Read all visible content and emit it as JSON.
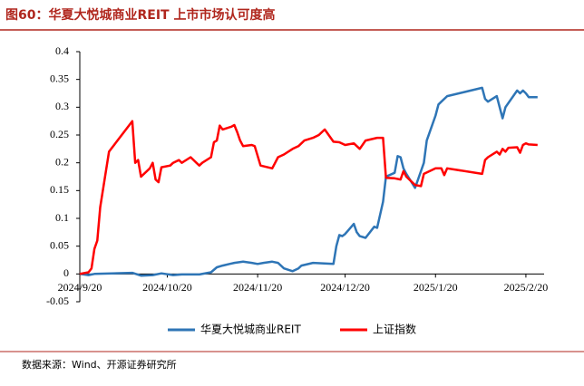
{
  "chart_data": {
    "type": "line",
    "title": "图60：华夏大悦城商业REIT 上市市场认可度高",
    "source": "数据来源：Wind、开源证券研究所",
    "xlim": [
      "2024/9/20",
      "2025/2/25"
    ],
    "xticks": [
      "2024/9/20",
      "2024/10/20",
      "2024/11/20",
      "2024/12/20",
      "2025/1/20",
      "2025/2/20"
    ],
    "ylim": [
      -0.05,
      0.4
    ],
    "yticks": [
      -0.05,
      0,
      0.05,
      0.1,
      0.15,
      0.2,
      0.25,
      0.3,
      0.35,
      0.4
    ],
    "legend": "bottom",
    "series": [
      {
        "name": "华夏大悦城商业REIT",
        "color": "#2e75b6",
        "x": [
          "2024/9/20",
          "2024/9/23",
          "2024/9/25",
          "2024/10/8",
          "2024/10/11",
          "2024/10/15",
          "2024/10/18",
          "2024/10/22",
          "2024/10/25",
          "2024/10/31",
          "2024/11/4",
          "2024/11/6",
          "2024/11/8",
          "2024/11/12",
          "2024/11/15",
          "2024/11/18",
          "2024/11/20",
          "2024/11/22",
          "2024/11/25",
          "2024/11/27",
          "2024/11/29",
          "2024/12/2",
          "2024/12/4",
          "2024/12/5",
          "2024/12/9",
          "2024/12/16",
          "2024/12/17",
          "2024/12/18",
          "2024/12/19",
          "2024/12/20",
          "2024/12/23",
          "2024/12/24",
          "2024/12/25",
          "2024/12/27",
          "2024/12/30",
          "2024/12/31",
          "2025/1/2",
          "2025/1/3",
          "2025/1/6",
          "2025/1/7",
          "2025/1/8",
          "2025/1/9",
          "2025/1/10",
          "2025/1/13",
          "2025/1/14",
          "2025/1/15",
          "2025/1/16",
          "2025/1/17",
          "2025/1/20",
          "2025/1/21",
          "2025/1/22",
          "2025/1/24",
          "2025/2/5",
          "2025/2/6",
          "2025/2/7",
          "2025/2/10",
          "2025/2/11",
          "2025/2/12",
          "2025/2/13",
          "2025/2/17",
          "2025/2/18",
          "2025/2/19",
          "2025/2/20",
          "2025/2/21",
          "2025/2/24"
        ],
        "values": [
          0,
          -0.002,
          0,
          0.002,
          -0.003,
          -0.002,
          0.001,
          -0.002,
          -0.001,
          -0.001,
          0.003,
          0.012,
          0.015,
          0.02,
          0.022,
          0.02,
          0.018,
          0.02,
          0.022,
          0.02,
          0.01,
          0.005,
          0.01,
          0.015,
          0.02,
          0.018,
          0.05,
          0.07,
          0.068,
          0.072,
          0.09,
          0.075,
          0.068,
          0.065,
          0.085,
          0.083,
          0.13,
          0.175,
          0.182,
          0.212,
          0.21,
          0.19,
          0.18,
          0.155,
          0.17,
          0.185,
          0.2,
          0.24,
          0.285,
          0.305,
          0.31,
          0.32,
          0.335,
          0.315,
          0.31,
          0.32,
          0.3,
          0.28,
          0.3,
          0.33,
          0.325,
          0.33,
          0.325,
          0.318,
          0.318
        ]
      },
      {
        "name": "上证指数",
        "color": "#ff0000",
        "x": [
          "2024/9/20",
          "2024/9/23",
          "2024/9/24",
          "2024/9/25",
          "2024/9/26",
          "2024/9/27",
          "2024/9/30",
          "2024/10/8",
          "2024/10/9",
          "2024/10/10",
          "2024/10/11",
          "2024/10/14",
          "2024/10/15",
          "2024/10/16",
          "2024/10/17",
          "2024/10/18",
          "2024/10/21",
          "2024/10/22",
          "2024/10/24",
          "2024/10/25",
          "2024/10/28",
          "2024/10/30",
          "2024/10/31",
          "2024/11/1",
          "2024/11/4",
          "2024/11/5",
          "2024/11/6",
          "2024/11/7",
          "2024/11/8",
          "2024/11/11",
          "2024/11/12",
          "2024/11/13",
          "2024/11/14",
          "2024/11/15",
          "2024/11/18",
          "2024/11/19",
          "2024/11/21",
          "2024/11/25",
          "2024/11/26",
          "2024/11/27",
          "2024/11/29",
          "2024/12/2",
          "2024/12/4",
          "2024/12/6",
          "2024/12/9",
          "2024/12/11",
          "2024/12/13",
          "2024/12/16",
          "2024/12/18",
          "2024/12/20",
          "2024/12/23",
          "2024/12/25",
          "2024/12/27",
          "2024/12/31",
          "2025/1/2",
          "2025/1/3",
          "2025/1/6",
          "2025/1/8",
          "2025/1/9",
          "2025/1/10",
          "2025/1/13",
          "2025/1/15",
          "2025/1/16",
          "2025/1/20",
          "2025/1/22",
          "2025/1/23",
          "2025/1/24",
          "2025/2/5",
          "2025/2/6",
          "2025/2/7",
          "2025/2/10",
          "2025/2/11",
          "2025/2/12",
          "2025/2/13",
          "2025/2/14",
          "2025/2/17",
          "2025/2/18",
          "2025/2/19",
          "2025/2/20",
          "2025/2/21",
          "2025/2/24"
        ],
        "values": [
          0,
          0.003,
          0.01,
          0.045,
          0.06,
          0.12,
          0.22,
          0.275,
          0.2,
          0.205,
          0.175,
          0.19,
          0.2,
          0.17,
          0.165,
          0.192,
          0.195,
          0.2,
          0.205,
          0.2,
          0.21,
          0.2,
          0.195,
          0.2,
          0.21,
          0.237,
          0.24,
          0.267,
          0.26,
          0.265,
          0.268,
          0.255,
          0.24,
          0.23,
          0.232,
          0.23,
          0.195,
          0.19,
          0.2,
          0.21,
          0.215,
          0.225,
          0.23,
          0.24,
          0.245,
          0.25,
          0.26,
          0.238,
          0.237,
          0.232,
          0.235,
          0.225,
          0.24,
          0.245,
          0.245,
          0.173,
          0.172,
          0.17,
          0.185,
          0.175,
          0.16,
          0.158,
          0.18,
          0.19,
          0.19,
          0.178,
          0.19,
          0.18,
          0.205,
          0.21,
          0.22,
          0.215,
          0.225,
          0.22,
          0.227,
          0.228,
          0.218,
          0.232,
          0.235,
          0.233,
          0.232
        ]
      }
    ]
  }
}
